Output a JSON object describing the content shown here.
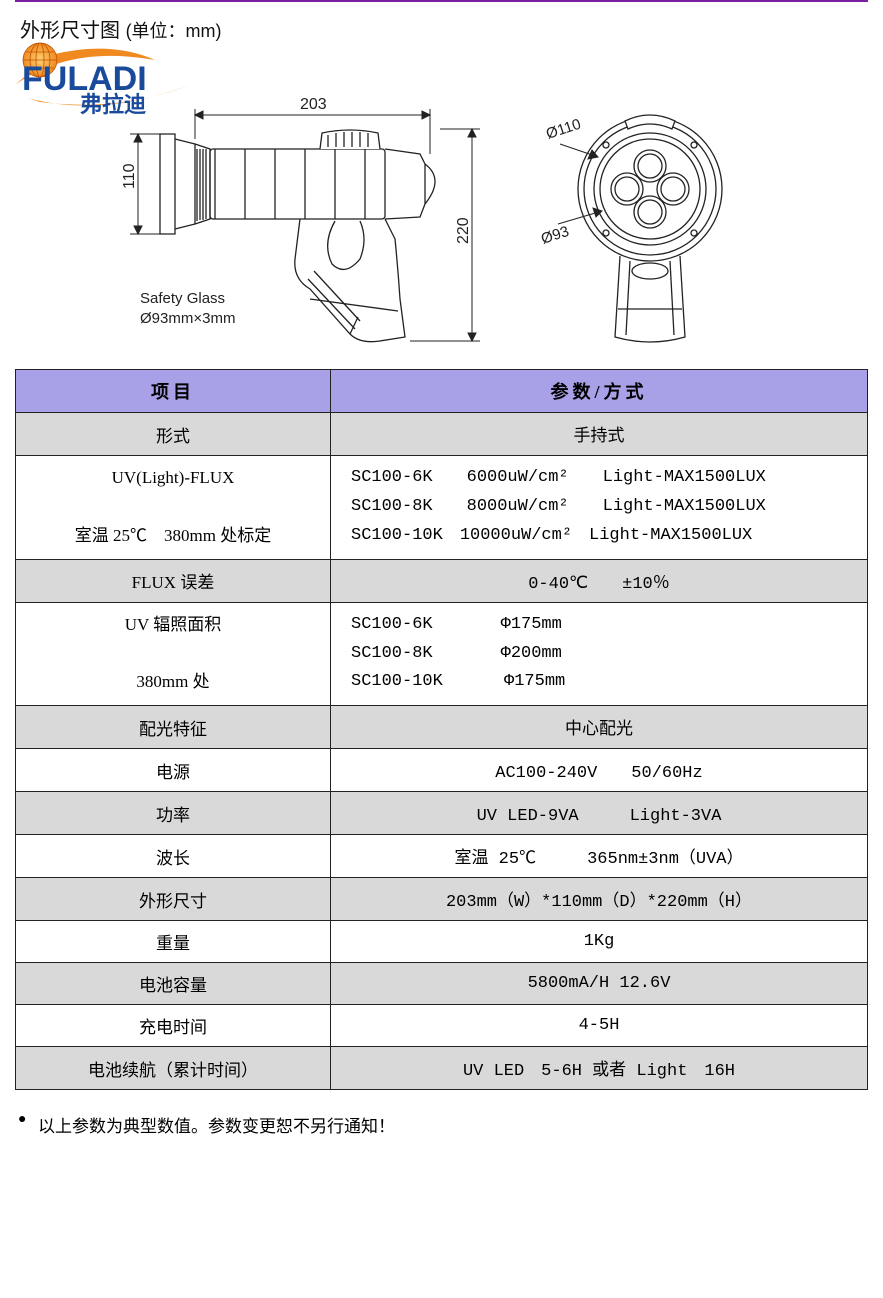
{
  "header": {
    "title_main": "外形尺寸图",
    "title_unit": "(单位：mm)",
    "logo_text_latin": "FULADI",
    "logo_text_cn": "弗拉迪"
  },
  "diagram": {
    "dim_length": "203",
    "dim_head": "110",
    "dim_height": "220",
    "front_outer": "Ø110",
    "front_inner": "Ø93",
    "safety_glass_l1": "Safety Glass",
    "safety_glass_l2": "Ø93mm×3mm",
    "stroke_color": "#222222",
    "dim_color": "#222222"
  },
  "table": {
    "header_col1": "项目",
    "header_col2": "参数/方式",
    "header_bg": "#a9a1e8",
    "grey_bg": "#d9d9d9",
    "border_color": "#222222",
    "rows": [
      {
        "bg": "grey",
        "col1": "形式",
        "col2_align": "center",
        "col2": "手持式"
      },
      {
        "bg": "white",
        "col1_html": "UV(Light)-FLUX<br><br>室温 25℃　380mm 处标定",
        "col2_align": "left",
        "col2_html": "SC100-6K　　6000uW/cm²　　Light-MAX1500LUX<br>SC100-8K　　8000uW/cm²　　Light-MAX1500LUX<br>SC100-10K　10000uW/cm²　Light-MAX1500LUX"
      },
      {
        "bg": "grey",
        "col1": "FLUX 误差",
        "col2_align": "center",
        "col2": "0-40℃　　±10％"
      },
      {
        "bg": "white",
        "col1_html": "UV 辐照面积<br><br>380mm 处",
        "col2_align": "left",
        "col2_html": "SC100-6K　　　　Φ175mm<br>SC100-8K　　　　Φ200mm<br>SC100-10K 　　　Φ175mm"
      },
      {
        "bg": "grey",
        "col1": "配光特征",
        "col2_align": "center",
        "col2": "中心配光"
      },
      {
        "bg": "white",
        "col1": "电源",
        "col2_align": "center",
        "col2": "AC100-240V　　50/60Hz"
      },
      {
        "bg": "grey",
        "col1": "功率",
        "col2_align": "center",
        "col2": "UV LED-9VA　　　Light-3VA"
      },
      {
        "bg": "white",
        "col1": "波长",
        "col2_align": "center",
        "col2": "室温 25℃　　　365nm±3nm（UVA）"
      },
      {
        "bg": "grey",
        "col1": "外形尺寸",
        "col2_align": "center",
        "col2": "203mm（W）*110mm（D）*220mm（H）"
      },
      {
        "bg": "white",
        "col1": "重量",
        "col2_align": "center",
        "col2": "1Kg"
      },
      {
        "bg": "grey",
        "col1": "电池容量",
        "col2_align": "center",
        "col2": "5800mA/H 12.6V"
      },
      {
        "bg": "white",
        "col1": "充电时间",
        "col2_align": "center",
        "col2": "4-5H"
      },
      {
        "bg": "grey",
        "col1": "电池续航（累计时间）",
        "col2_align": "center",
        "col2": "UV LED　5-6H 或者 Light　16H"
      }
    ]
  },
  "footer": {
    "note": "以上参数为典型数值。参数变更恕不另行通知！"
  }
}
